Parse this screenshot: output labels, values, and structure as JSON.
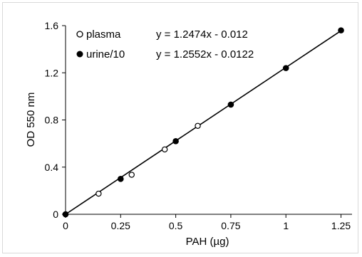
{
  "chart_data": {
    "type": "scatter",
    "title": "",
    "xlabel": "PAH (µg)",
    "ylabel": "OD  550 nm",
    "xlim": [
      0,
      1.3
    ],
    "ylim": [
      0,
      1.6
    ],
    "xticks": [
      0,
      0.25,
      0.5,
      0.75,
      1,
      1.25
    ],
    "xtick_labels": [
      "0",
      "0.25",
      "0.5",
      "0.75",
      "1",
      "1.25"
    ],
    "yticks": [
      0,
      0.4,
      0.8,
      1.2,
      1.6
    ],
    "ytick_labels": [
      "0",
      "0.4",
      "0.8",
      "1.2",
      "1.6"
    ],
    "legend_position": "top-left",
    "series": [
      {
        "name": "plasma",
        "marker": "open-circle",
        "x": [
          0,
          0.15,
          0.3,
          0.45,
          0.6
        ],
        "y": [
          0,
          0.175,
          0.335,
          0.55,
          0.75
        ],
        "trendline": {
          "slope": 1.2474,
          "intercept": -0.012,
          "equation": "y = 1.2474x - 0.012"
        }
      },
      {
        "name": "urine/10",
        "marker": "filled-circle",
        "x": [
          0,
          0.25,
          0.5,
          0.75,
          1,
          1.25
        ],
        "y": [
          0,
          0.3,
          0.62,
          0.93,
          1.24,
          1.56
        ],
        "trendline": {
          "slope": 1.2552,
          "intercept": -0.0122,
          "equation": "y = 1.2552x - 0.0122"
        }
      }
    ]
  }
}
